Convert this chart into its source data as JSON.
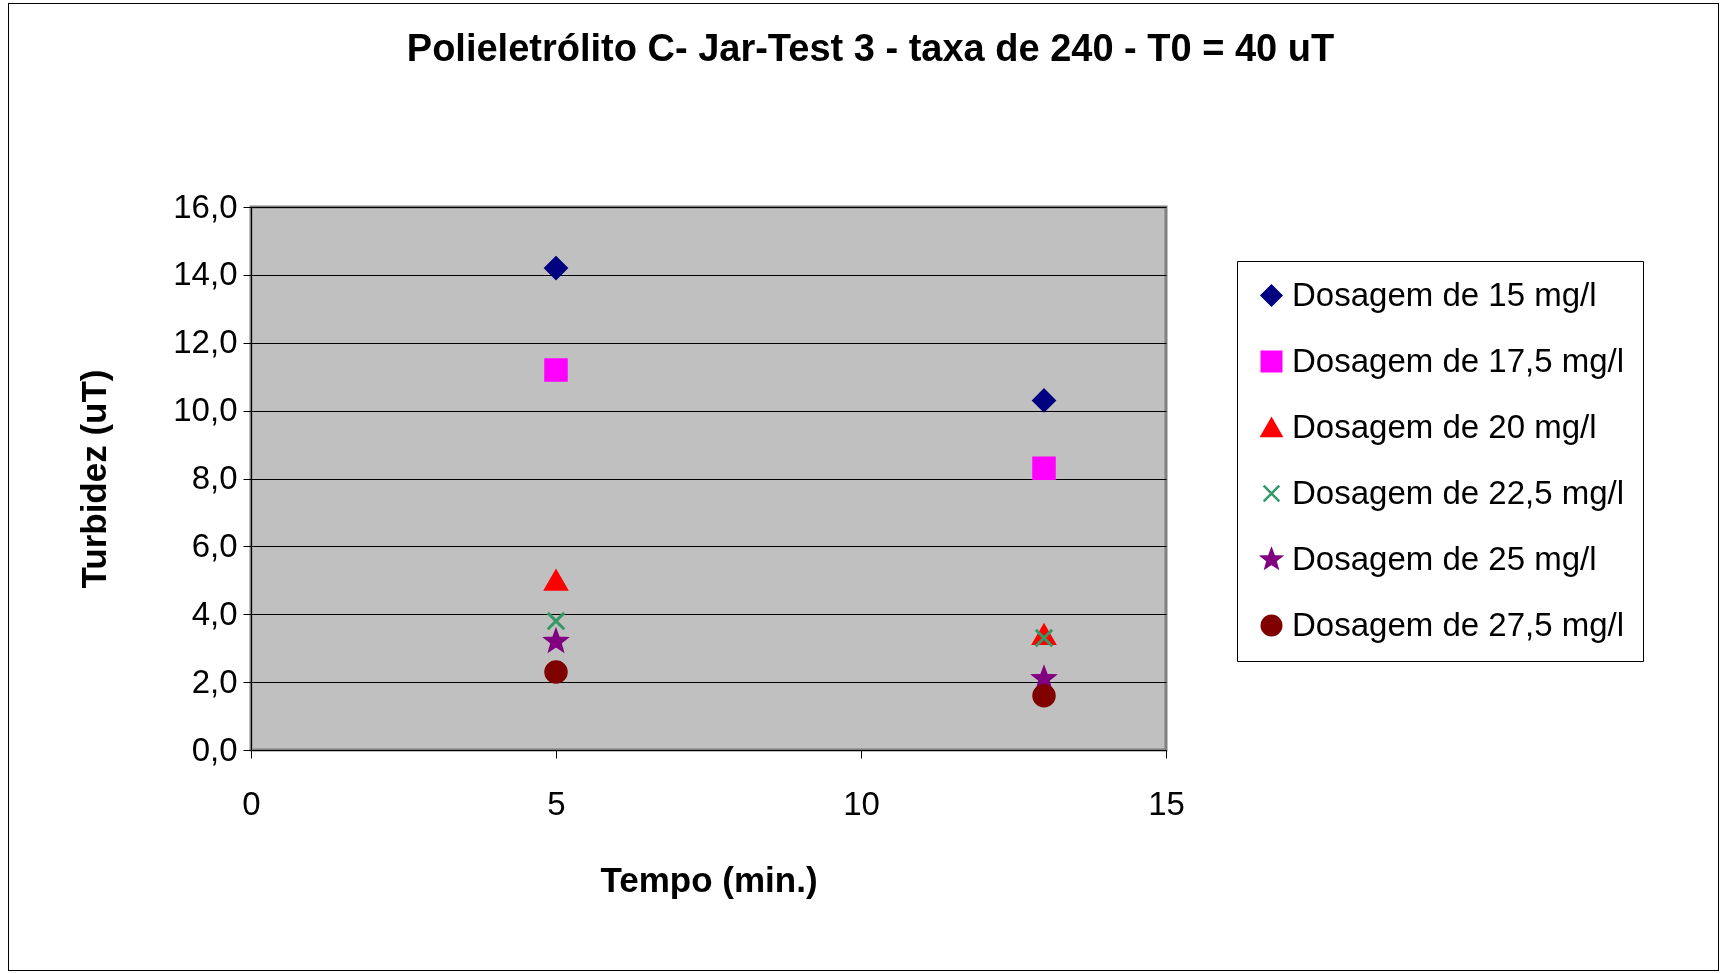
{
  "chart_data": {
    "type": "scatter",
    "title": "Polieletrólito C- Jar-Test 3 - taxa de 240 - T0 = 40 uT",
    "xlabel": "Tempo (min.)",
    "ylabel": "Turbidez (uT)",
    "x": [
      5,
      13
    ],
    "series": [
      {
        "name": "Dosagem de 15 mg/l",
        "color": "#000080",
        "marker": "diamond",
        "values": [
          14.2,
          10.3
        ]
      },
      {
        "name": "Dosagem de 17,5 mg/l",
        "color": "#ff00ff",
        "marker": "square",
        "values": [
          11.2,
          8.3
        ]
      },
      {
        "name": "Dosagem de 20 mg/l",
        "color": "#ff0000",
        "marker": "triangle",
        "values": [
          5.0,
          3.4
        ]
      },
      {
        "name": "Dosagem de 22,5 mg/l",
        "color": "#339966",
        "marker": "cross",
        "values": [
          3.8,
          3.3
        ]
      },
      {
        "name": "Dosagem de 25 mg/l",
        "color": "#800080",
        "marker": "star",
        "values": [
          3.2,
          2.1
        ]
      },
      {
        "name": "Dosagem de 27,5 mg/l",
        "color": "#800000",
        "marker": "circle",
        "values": [
          2.3,
          1.6
        ]
      }
    ],
    "xlim": [
      0,
      15
    ],
    "xticks": [
      0,
      5,
      10,
      15
    ],
    "ylim": [
      0,
      16
    ],
    "yticks": [
      {
        "value": 0,
        "label": "0,0"
      },
      {
        "value": 2,
        "label": "2,0"
      },
      {
        "value": 4,
        "label": "4,0"
      },
      {
        "value": 6,
        "label": "6,0"
      },
      {
        "value": 8,
        "label": "8,0"
      },
      {
        "value": 10,
        "label": "10,0"
      },
      {
        "value": 12,
        "label": "12,0"
      },
      {
        "value": 14,
        "label": "14,0"
      },
      {
        "value": 16,
        "label": "16,0"
      }
    ],
    "grid": "y",
    "legend": "right"
  }
}
